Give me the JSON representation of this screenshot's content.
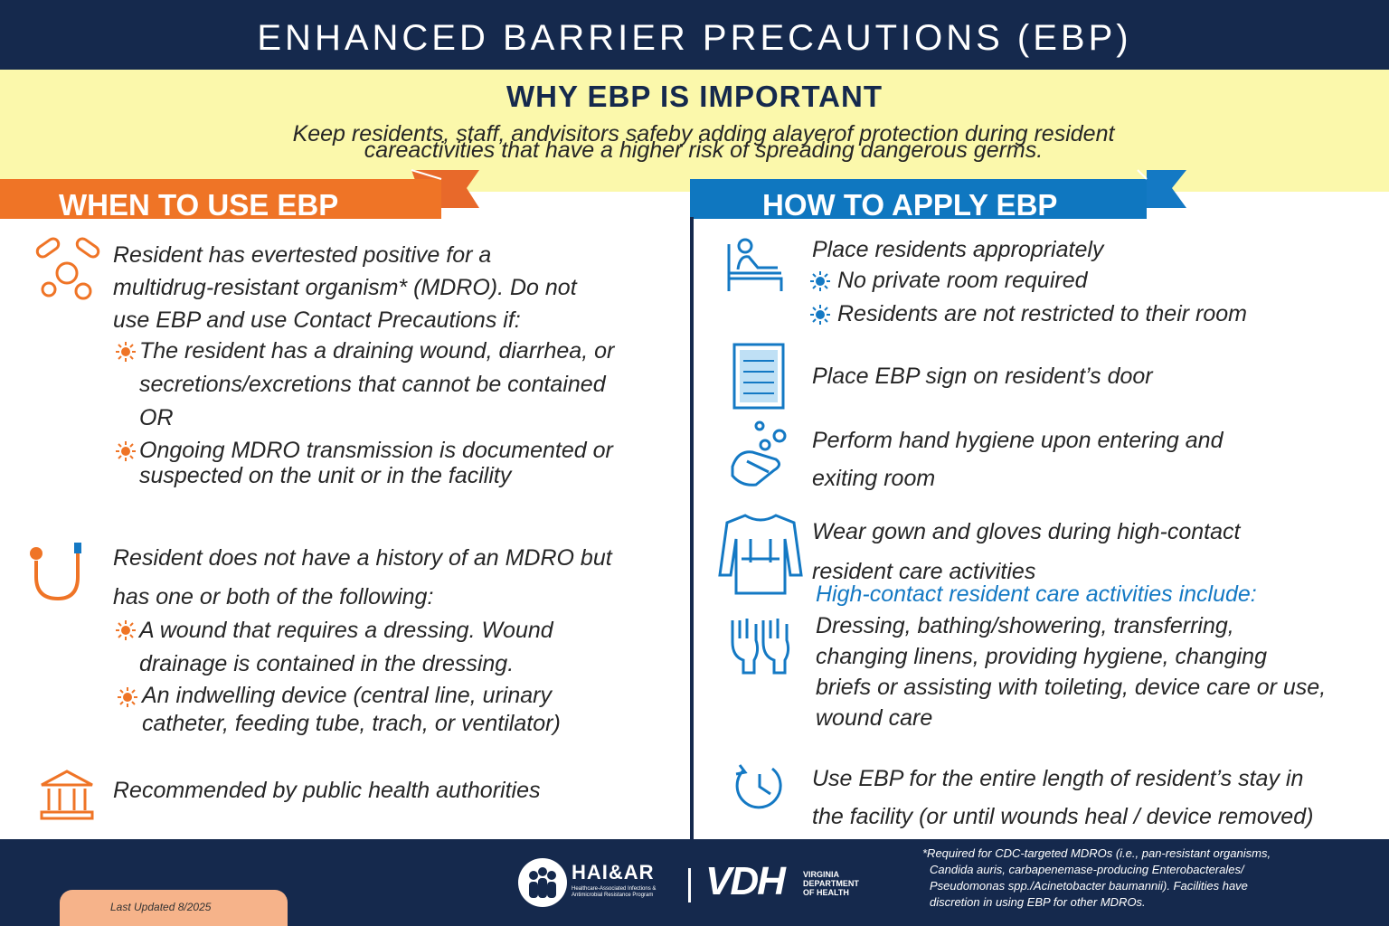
{
  "header": {
    "title": "ENHANCED BARRIER PRECAUTIONS (EBP)"
  },
  "why": {
    "title": "WHY EBP IS IMPORTANT",
    "lines": [
      "Keep residents, staff, andvisitors safeby adding alayerof protection during resident",
      "careactivities that have a higher risk of spreading dangerous germs."
    ]
  },
  "when": {
    "title": "WHEN TO USE EBP",
    "items": [
      {
        "lines": [
          "Resident has evertested positive for a",
          "multidrug-resistant organism* (MDRO). Do not",
          "use EBP and use Contact Precautions if:"
        ],
        "bullets": [
          [
            "The resident has a draining wound, diarrhea, or",
            "secretions/excretions that cannot be contained",
            "OR"
          ],
          [
            "Ongoing MDRO transmission is documented or",
            "suspected on the unit or in the facility"
          ]
        ]
      },
      {
        "lines": [
          "Resident does not have a history of an MDRO but",
          "has one or both of the following:"
        ],
        "bullets": [
          [
            "A wound that requires a dressing. Wound",
            "drainage is contained in the dressing."
          ],
          [
            "An indwelling device (central line, urinary",
            "catheter, feeding tube, trach, or ventilator)"
          ]
        ]
      },
      {
        "lines": [
          "Recommended by public health authorities"
        ]
      }
    ]
  },
  "how": {
    "title": "HOW TO APPLY EBP",
    "items": [
      {
        "lines": [
          "Place residents appropriately"
        ],
        "bullets": [
          "No private room required",
          "Residents are not restricted to their room"
        ]
      },
      {
        "lines": [
          "Place EBP sign on resident’s door"
        ]
      },
      {
        "lines": [
          "Perform hand hygiene upon entering and",
          "exiting room"
        ]
      },
      {
        "lines": [
          "Wear gown and gloves during high-contact",
          "resident care activities"
        ],
        "subtitle": "High-contact resident care activities include:",
        "detail": [
          "Dressing, bathing/showering, transferring,",
          "changing linens, providing hygiene, changing",
          "briefs or assisting with toileting, device care or use,",
          "wound care"
        ]
      },
      {
        "lines": [
          "Use EBP for the entire length of resident’s stay in",
          "the facility (or until wounds heal / device removed)"
        ]
      }
    ]
  },
  "footer": {
    "last_updated": "Last Updated 8/2025",
    "logo1": "HAI&AR",
    "logo1_sub": [
      "Healthcare-Associated Infections &",
      "Antimicrobial Resistance Program"
    ],
    "logo2": "VDH",
    "logo2_sub": [
      "VIRGINIA",
      "DEPARTMENT",
      "OF HEALTH"
    ],
    "note": [
      "*Required for CDC-targeted MDROs (i.e., pan-resistant organisms,",
      "Candida auris, carbapenemase-producing Enterobacterales/",
      "Pseudomonas spp./Acinetobacter baumannii). Facilities have",
      "discretion in using EBP for other MDROs."
    ]
  }
}
